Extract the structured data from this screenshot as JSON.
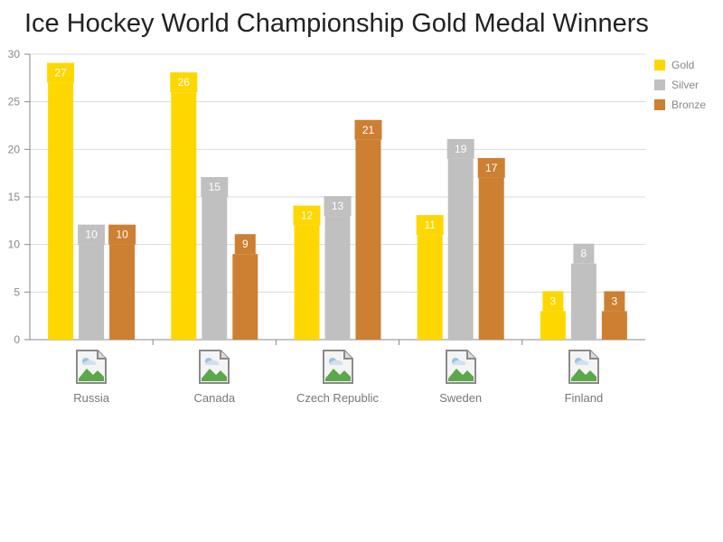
{
  "chart_data": {
    "type": "bar",
    "title": "Ice Hockey World Championship Gold Medal Winners",
    "categories": [
      "Russia",
      "Canada",
      "Czech Republic",
      "Sweden",
      "Finland"
    ],
    "category_icon": "broken-image-icon",
    "series": [
      {
        "name": "Gold",
        "color": "#FFD700",
        "values": [
          27,
          26,
          12,
          11,
          3
        ]
      },
      {
        "name": "Silver",
        "color": "#C0C0C0",
        "values": [
          10,
          15,
          13,
          19,
          8
        ]
      },
      {
        "name": "Bronze",
        "color": "#CD7F32",
        "values": [
          10,
          9,
          21,
          17,
          3
        ]
      }
    ],
    "ylim": [
      0,
      30
    ],
    "yticks": [
      0,
      5,
      10,
      15,
      20,
      25,
      30
    ],
    "grid": true,
    "legend_position": "top-right"
  }
}
